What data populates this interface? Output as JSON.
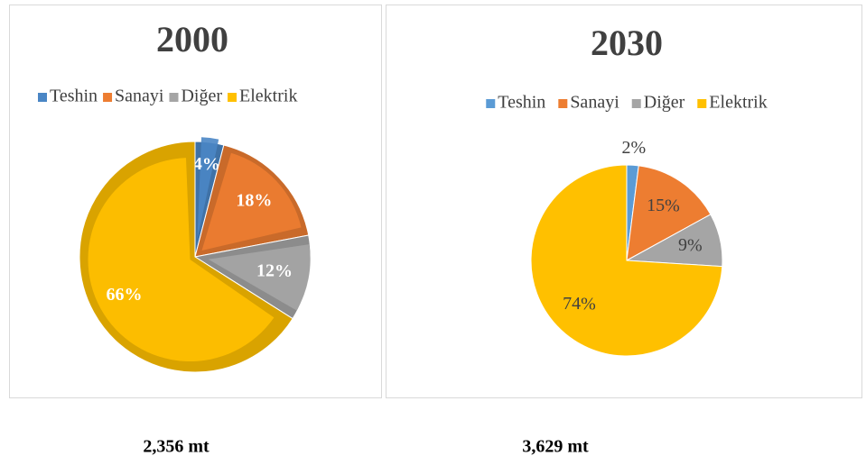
{
  "chart_data": [
    {
      "type": "pie",
      "title": "2000",
      "categories": [
        "Teshin",
        "Sanayi",
        "Diğer",
        "Elektrik"
      ],
      "values": [
        4,
        18,
        12,
        66
      ],
      "colors": [
        "#4a86c5",
        "#ed7d31",
        "#a5a5a5",
        "#ffc000"
      ]
    },
    {
      "type": "pie",
      "title": "2030",
      "categories": [
        "Teshin",
        "Sanayi",
        "Diğer",
        "Elektrik"
      ],
      "values": [
        2,
        15,
        9,
        74
      ],
      "colors": [
        "#5b9bd5",
        "#ed7d31",
        "#a5a5a5",
        "#ffc000"
      ]
    }
  ],
  "captions": [
    "2,356 mt",
    "3,629 mt"
  ]
}
